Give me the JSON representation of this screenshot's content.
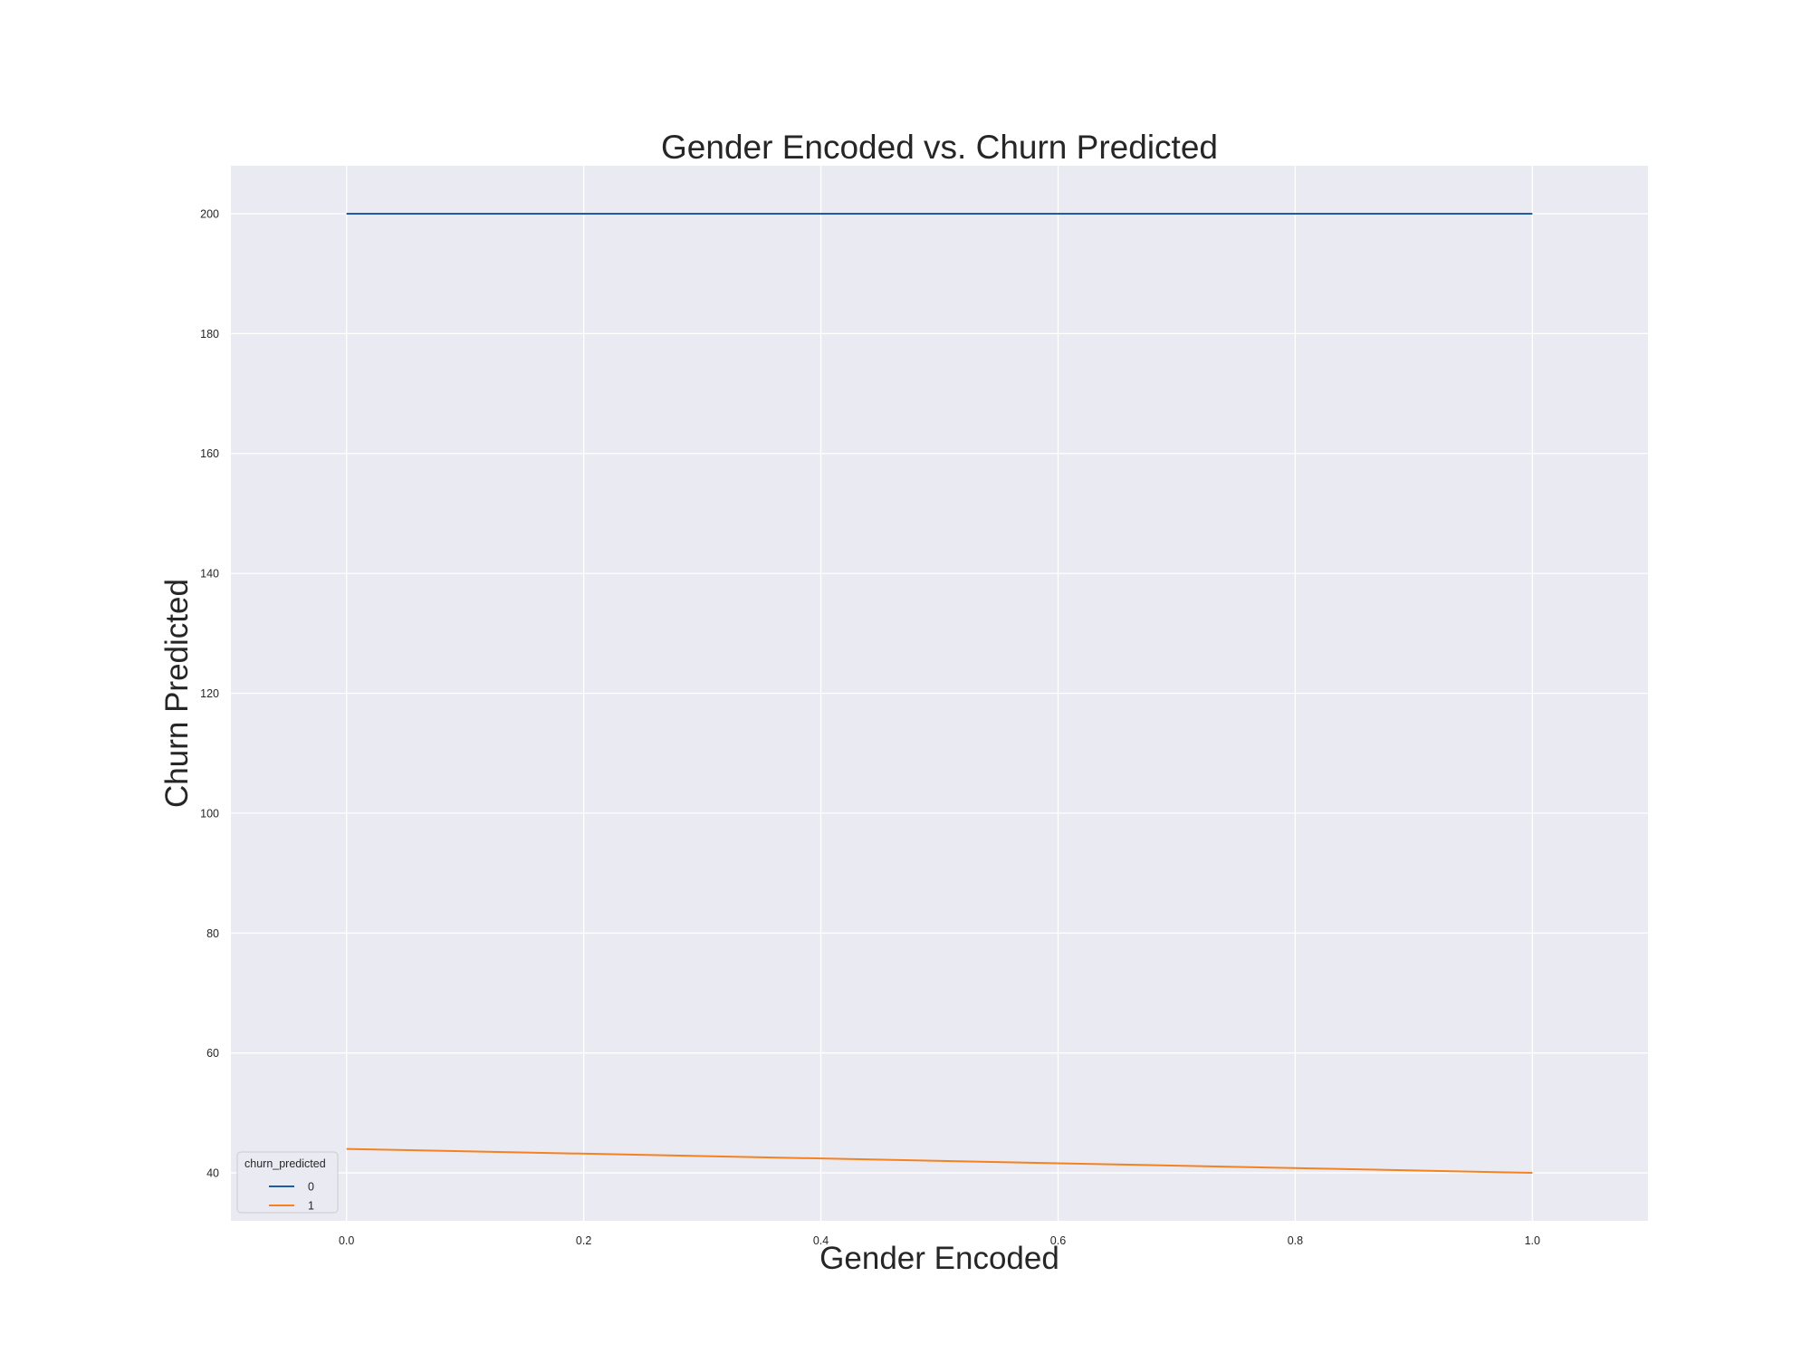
{
  "chart_data": {
    "type": "line",
    "title": "Gender Encoded vs. Churn Predicted",
    "xlabel": "Gender Encoded",
    "ylabel": "Churn Predicted",
    "xlim": [
      -0.0975,
      1.0975
    ],
    "ylim": [
      32,
      208
    ],
    "x_ticks": [
      0.0,
      0.2,
      0.4,
      0.6,
      0.8,
      1.0
    ],
    "x_tick_labels": [
      "0.0",
      "0.2",
      "0.4",
      "0.6",
      "0.8",
      "1.0"
    ],
    "y_ticks": [
      40,
      60,
      80,
      100,
      120,
      140,
      160,
      180,
      200
    ],
    "y_tick_labels": [
      "40",
      "60",
      "80",
      "100",
      "120",
      "140",
      "160",
      "180",
      "200"
    ],
    "grid": true,
    "legend": {
      "title": "churn_predicted",
      "placement": "lower-left"
    },
    "series": [
      {
        "name": "0",
        "color": "#1f5ca8",
        "x": [
          0.0,
          1.0
        ],
        "y": [
          200,
          200
        ]
      },
      {
        "name": "1",
        "color": "#f58220",
        "x": [
          0.0,
          1.0
        ],
        "y": [
          44,
          40
        ]
      }
    ]
  },
  "colors": {
    "plot_background": "#eaeaf2",
    "grid": "#ffffff",
    "text": "#262626"
  }
}
